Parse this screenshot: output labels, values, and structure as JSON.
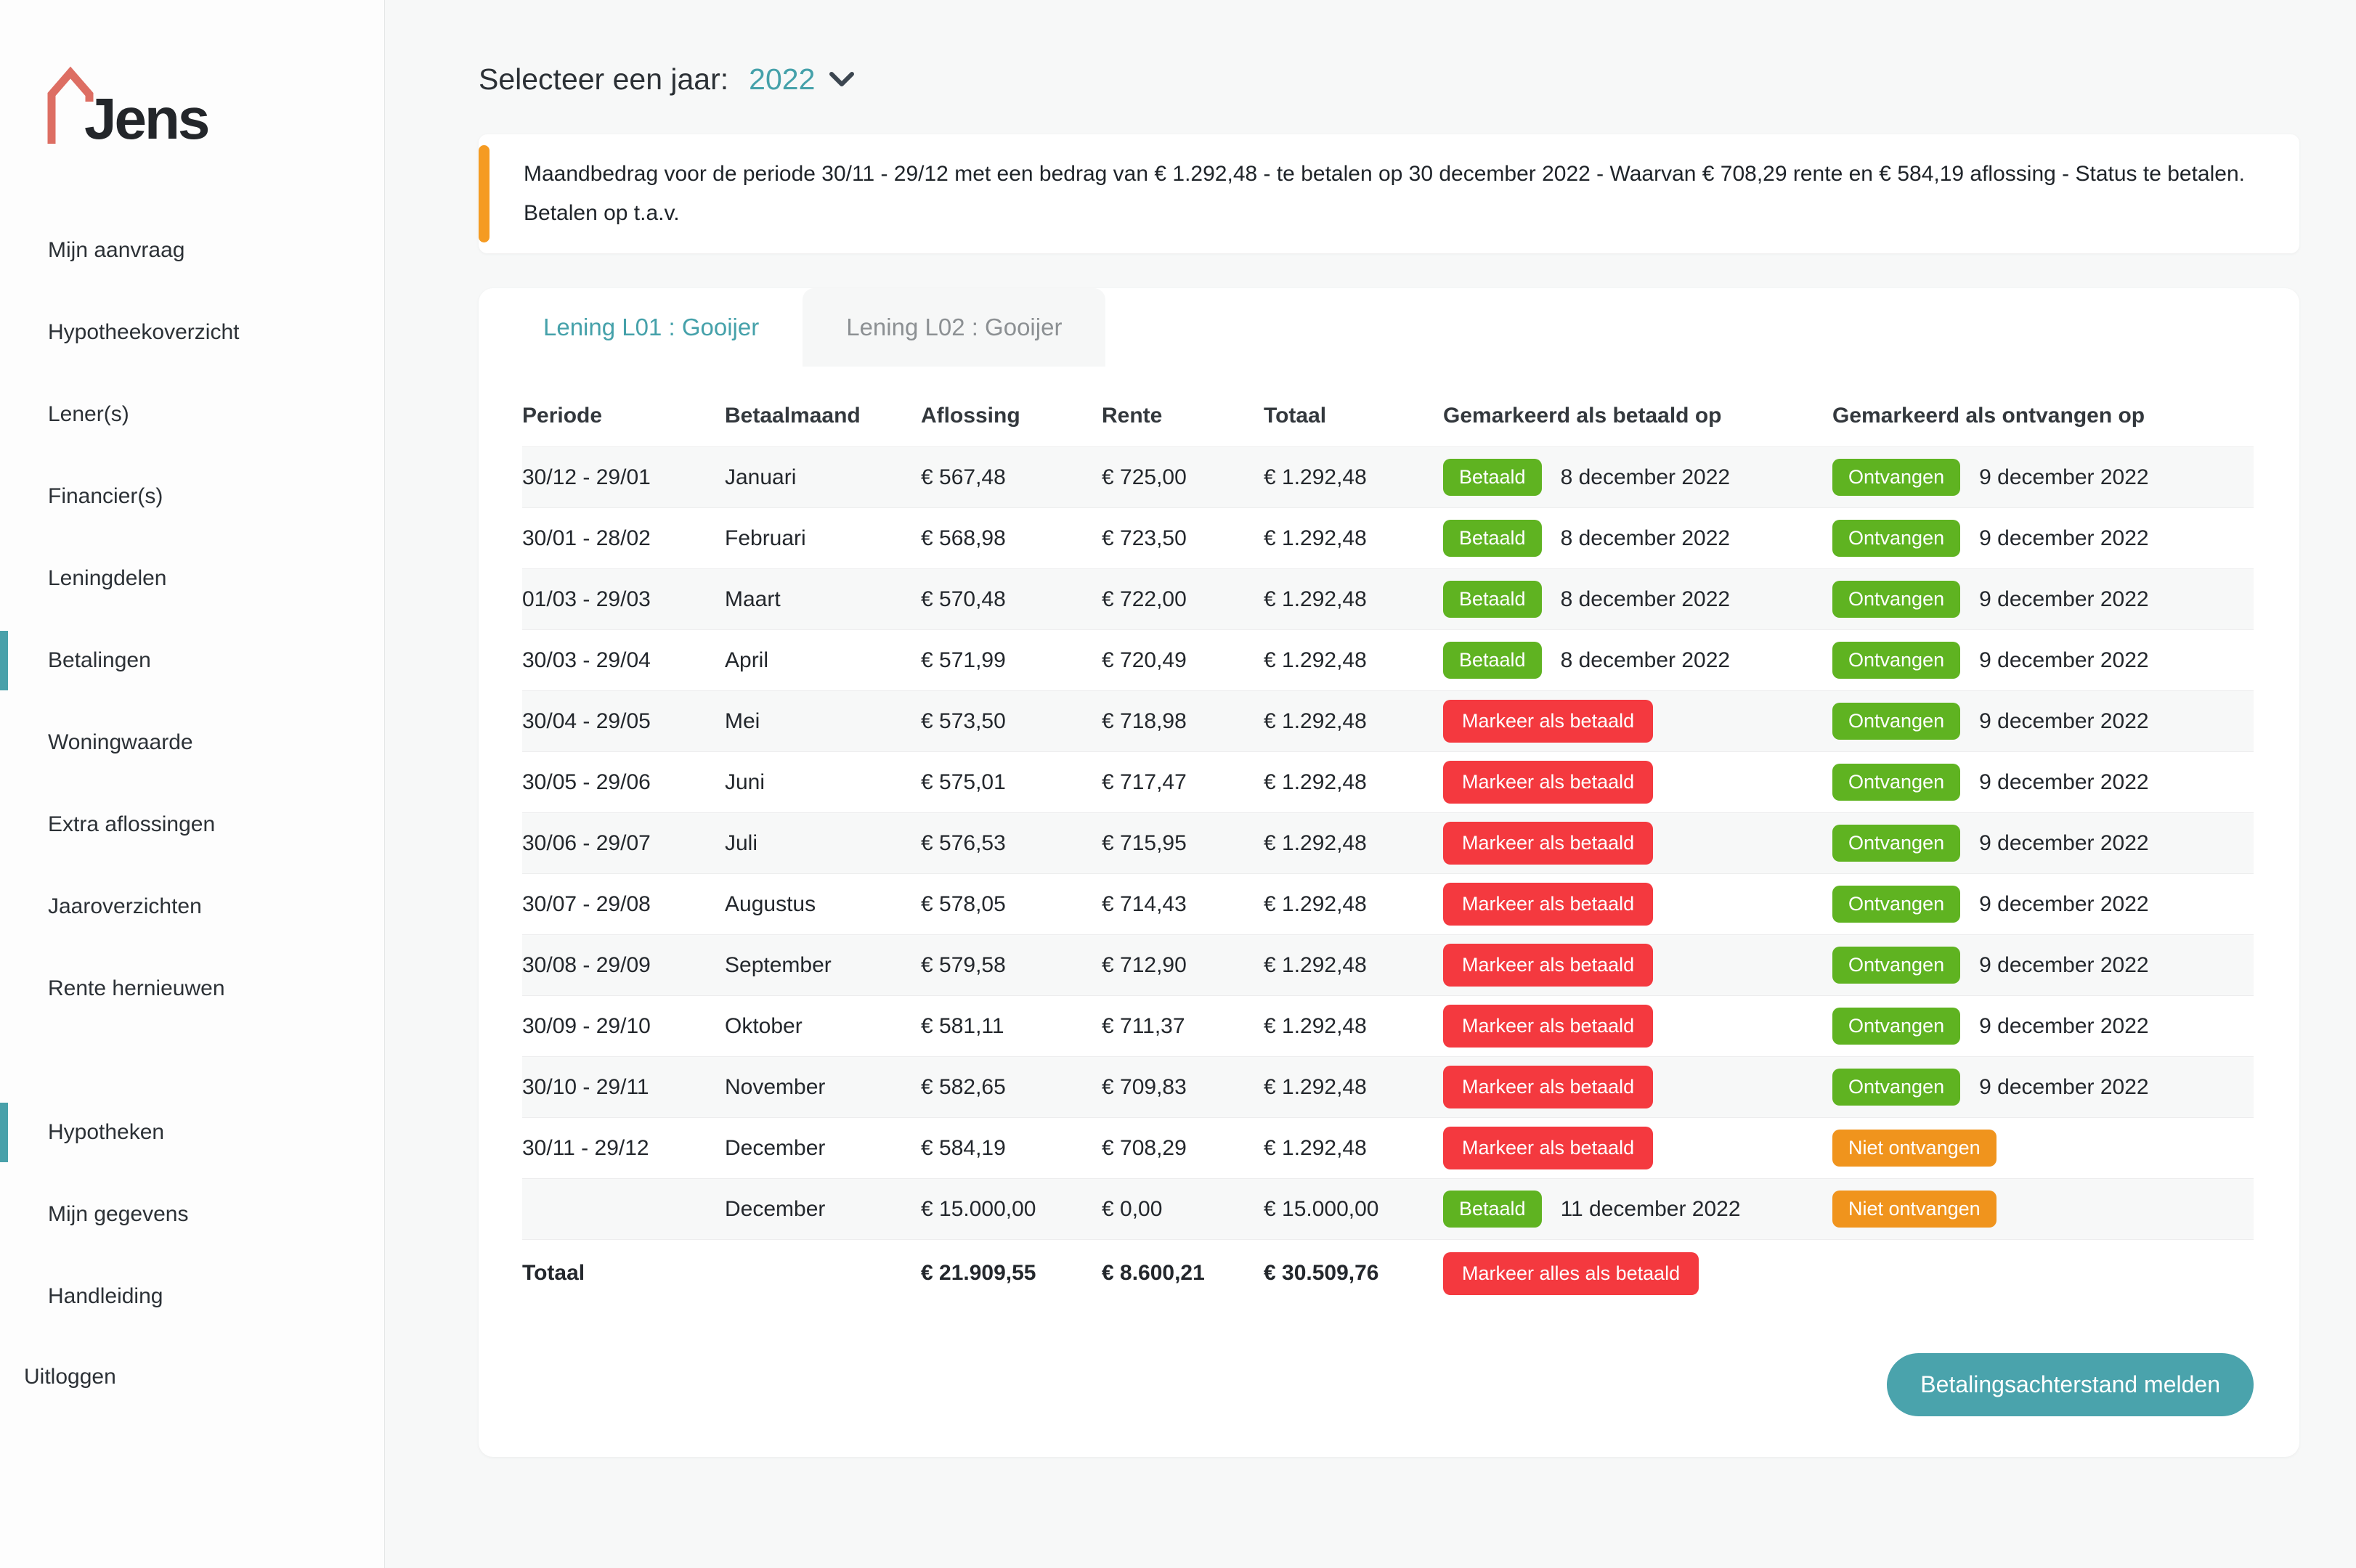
{
  "logo": {
    "text": "Jens"
  },
  "colors": {
    "teal": "#4aa3ac",
    "green": "#5fb321",
    "red": "#f4393f",
    "orange": "#f0941d",
    "alert_accent": "#f59b22",
    "logo_coral": "#dd6e63"
  },
  "sidebar": {
    "primary": [
      {
        "label": "Mijn aanvraag",
        "active": false
      },
      {
        "label": "Hypotheekoverzicht",
        "active": false
      },
      {
        "label": "Lener(s)",
        "active": false
      },
      {
        "label": "Financier(s)",
        "active": false
      },
      {
        "label": "Leningdelen",
        "active": false
      },
      {
        "label": "Betalingen",
        "active": true
      },
      {
        "label": "Woningwaarde",
        "active": false
      },
      {
        "label": "Extra aflossingen",
        "active": false
      },
      {
        "label": "Jaaroverzichten",
        "active": false
      },
      {
        "label": "Rente hernieuwen",
        "active": false
      }
    ],
    "secondary": [
      {
        "label": "Hypotheken",
        "active": true
      },
      {
        "label": "Mijn gegevens",
        "active": false
      },
      {
        "label": "Handleiding",
        "active": false
      }
    ],
    "logout_label": "Uitloggen"
  },
  "header": {
    "year_select_label": "Selecteer een jaar:",
    "year_value": "2022"
  },
  "alert": {
    "line1": "Maandbedrag voor de periode 30/11 - 29/12 met een bedrag van € 1.292,48 - te betalen op 30 december 2022 - Waarvan € 708,29 rente en € 584,19 aflossing - Status te betalen.",
    "line2": "Betalen op t.a.v."
  },
  "tabs": [
    {
      "label": "Lening L01 : Gooijer",
      "active": true
    },
    {
      "label": "Lening L02 : Gooijer",
      "active": false
    }
  ],
  "table": {
    "columns": [
      "Periode",
      "Betaalmaand",
      "Aflossing",
      "Rente",
      "Totaal",
      "Gemarkeerd als betaald op",
      "Gemarkeerd als ontvangen op"
    ],
    "rows": [
      {
        "periode": "30/12 - 29/01",
        "maand": "Januari",
        "aflossing": "€ 567,48",
        "rente": "€ 725,00",
        "totaal": "€ 1.292,48",
        "betaald": {
          "label": "Betaald",
          "color": "green",
          "button": false,
          "date": "8 december 2022"
        },
        "ontvangen": {
          "label": "Ontvangen",
          "color": "green",
          "button": false,
          "date": "9 december 2022"
        }
      },
      {
        "periode": "30/01 - 28/02",
        "maand": "Februari",
        "aflossing": "€ 568,98",
        "rente": "€ 723,50",
        "totaal": "€ 1.292,48",
        "betaald": {
          "label": "Betaald",
          "color": "green",
          "button": false,
          "date": "8 december 2022"
        },
        "ontvangen": {
          "label": "Ontvangen",
          "color": "green",
          "button": false,
          "date": "9 december 2022"
        }
      },
      {
        "periode": "01/03 - 29/03",
        "maand": "Maart",
        "aflossing": "€ 570,48",
        "rente": "€ 722,00",
        "totaal": "€ 1.292,48",
        "betaald": {
          "label": "Betaald",
          "color": "green",
          "button": false,
          "date": "8 december 2022"
        },
        "ontvangen": {
          "label": "Ontvangen",
          "color": "green",
          "button": false,
          "date": "9 december 2022"
        }
      },
      {
        "periode": "30/03 - 29/04",
        "maand": "April",
        "aflossing": "€ 571,99",
        "rente": "€ 720,49",
        "totaal": "€ 1.292,48",
        "betaald": {
          "label": "Betaald",
          "color": "green",
          "button": false,
          "date": "8 december 2022"
        },
        "ontvangen": {
          "label": "Ontvangen",
          "color": "green",
          "button": false,
          "date": "9 december 2022"
        }
      },
      {
        "periode": "30/04 - 29/05",
        "maand": "Mei",
        "aflossing": "€ 573,50",
        "rente": "€ 718,98",
        "totaal": "€ 1.292,48",
        "betaald": {
          "label": "Markeer als betaald",
          "color": "red",
          "button": true
        },
        "ontvangen": {
          "label": "Ontvangen",
          "color": "green",
          "button": false,
          "date": "9 december 2022"
        }
      },
      {
        "periode": "30/05 - 29/06",
        "maand": "Juni",
        "aflossing": "€ 575,01",
        "rente": "€ 717,47",
        "totaal": "€ 1.292,48",
        "betaald": {
          "label": "Markeer als betaald",
          "color": "red",
          "button": true
        },
        "ontvangen": {
          "label": "Ontvangen",
          "color": "green",
          "button": false,
          "date": "9 december 2022"
        }
      },
      {
        "periode": "30/06 - 29/07",
        "maand": "Juli",
        "aflossing": "€ 576,53",
        "rente": "€ 715,95",
        "totaal": "€ 1.292,48",
        "betaald": {
          "label": "Markeer als betaald",
          "color": "red",
          "button": true
        },
        "ontvangen": {
          "label": "Ontvangen",
          "color": "green",
          "button": false,
          "date": "9 december 2022"
        }
      },
      {
        "periode": "30/07 - 29/08",
        "maand": "Augustus",
        "aflossing": "€ 578,05",
        "rente": "€ 714,43",
        "totaal": "€ 1.292,48",
        "betaald": {
          "label": "Markeer als betaald",
          "color": "red",
          "button": true
        },
        "ontvangen": {
          "label": "Ontvangen",
          "color": "green",
          "button": false,
          "date": "9 december 2022"
        }
      },
      {
        "periode": "30/08 - 29/09",
        "maand": "September",
        "aflossing": "€ 579,58",
        "rente": "€ 712,90",
        "totaal": "€ 1.292,48",
        "betaald": {
          "label": "Markeer als betaald",
          "color": "red",
          "button": true
        },
        "ontvangen": {
          "label": "Ontvangen",
          "color": "green",
          "button": false,
          "date": "9 december 2022"
        }
      },
      {
        "periode": "30/09 - 29/10",
        "maand": "Oktober",
        "aflossing": "€ 581,11",
        "rente": "€ 711,37",
        "totaal": "€ 1.292,48",
        "betaald": {
          "label": "Markeer als betaald",
          "color": "red",
          "button": true
        },
        "ontvangen": {
          "label": "Ontvangen",
          "color": "green",
          "button": false,
          "date": "9 december 2022"
        }
      },
      {
        "periode": "30/10 - 29/11",
        "maand": "November",
        "aflossing": "€ 582,65",
        "rente": "€ 709,83",
        "totaal": "€ 1.292,48",
        "betaald": {
          "label": "Markeer als betaald",
          "color": "red",
          "button": true
        },
        "ontvangen": {
          "label": "Ontvangen",
          "color": "green",
          "button": false,
          "date": "9 december 2022"
        }
      },
      {
        "periode": "30/11 - 29/12",
        "maand": "December",
        "aflossing": "€ 584,19",
        "rente": "€ 708,29",
        "totaal": "€ 1.292,48",
        "betaald": {
          "label": "Markeer als betaald",
          "color": "red",
          "button": true
        },
        "ontvangen": {
          "label": "Niet ontvangen",
          "color": "orange",
          "button": false
        }
      },
      {
        "periode": "",
        "maand": "December",
        "aflossing": "€ 15.000,00",
        "rente": "€ 0,00",
        "totaal": "€ 15.000,00",
        "betaald": {
          "label": "Betaald",
          "color": "green",
          "button": false,
          "date": "11 december 2022"
        },
        "ontvangen": {
          "label": "Niet ontvangen",
          "color": "orange",
          "button": false
        }
      }
    ],
    "total": {
      "label": "Totaal",
      "aflossing": "€ 21.909,55",
      "rente": "€ 8.600,21",
      "totaal": "€ 30.509,76",
      "action": {
        "label": "Markeer alles als betaald",
        "color": "red",
        "button": true
      }
    }
  },
  "footer": {
    "report_button": "Betalingsachterstand melden"
  }
}
